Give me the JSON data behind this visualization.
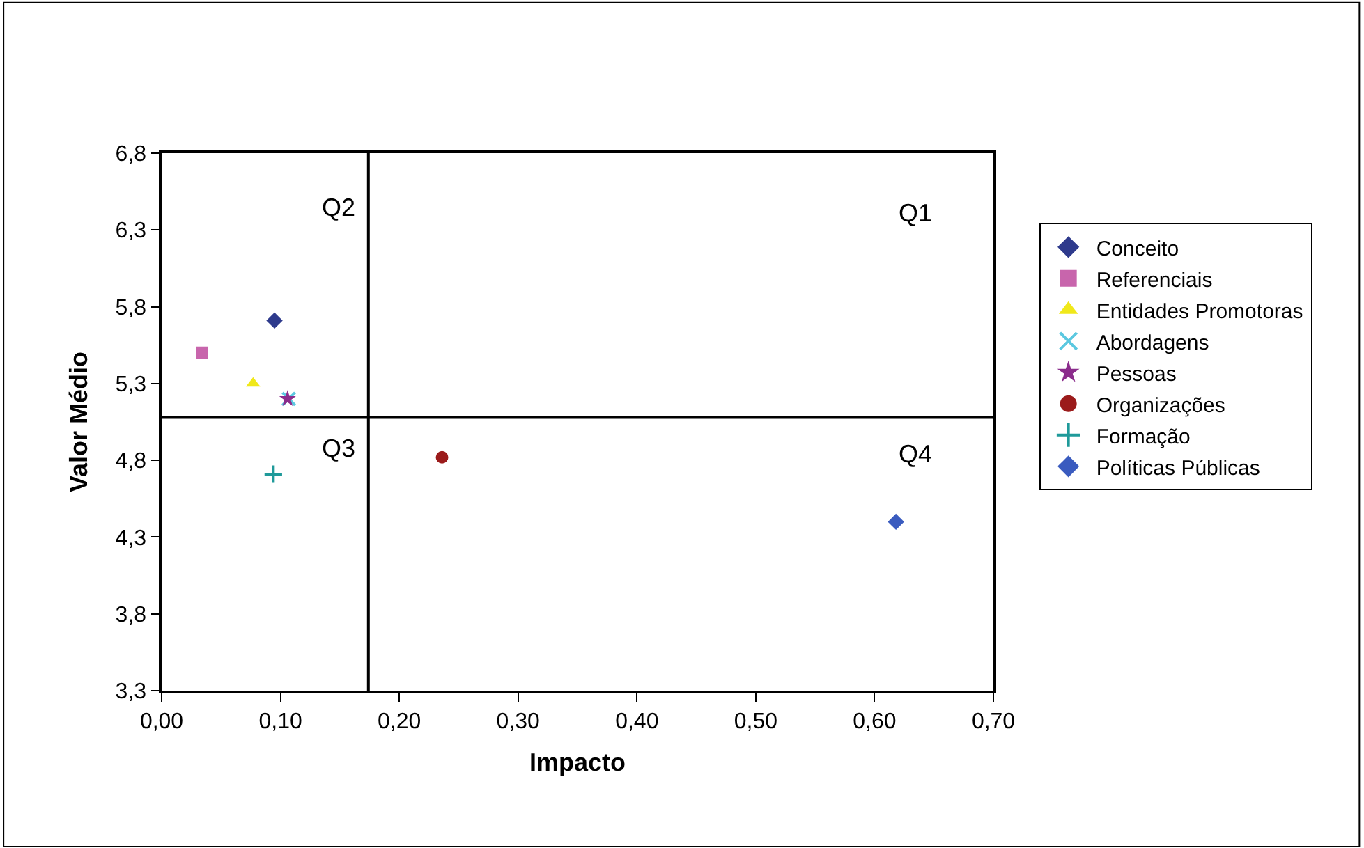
{
  "chart_data": {
    "type": "scatter",
    "xlabel": "Impacto",
    "ylabel": "Valor Médio",
    "xlim": [
      0,
      0.7
    ],
    "ylim": [
      3.3,
      6.8
    ],
    "xticks": [
      {
        "value": 0,
        "label": "0,00"
      },
      {
        "value": 0.1,
        "label": "0,10"
      },
      {
        "value": 0.2,
        "label": "0,20"
      },
      {
        "value": 0.3,
        "label": "0,30"
      },
      {
        "value": 0.4,
        "label": "0,40"
      },
      {
        "value": 0.5,
        "label": "0,50"
      },
      {
        "value": 0.6,
        "label": "0,60"
      },
      {
        "value": 0.7,
        "label": "0,70"
      }
    ],
    "yticks": [
      {
        "value": 3.3,
        "label": "3,3"
      },
      {
        "value": 3.8,
        "label": "3,8"
      },
      {
        "value": 4.3,
        "label": "4,3"
      },
      {
        "value": 4.8,
        "label": "4,8"
      },
      {
        "value": 5.3,
        "label": "5,3"
      },
      {
        "value": 5.8,
        "label": "5,8"
      },
      {
        "value": 6.3,
        "label": "6,3"
      },
      {
        "value": 6.8,
        "label": "6,8"
      }
    ],
    "legend": "right",
    "series": [
      {
        "name": "Conceito",
        "color": "#2e3a8c",
        "marker": "diamond",
        "x": [
          0.095
        ],
        "values": [
          5.71
        ]
      },
      {
        "name": "Referenciais",
        "color": "#c865ac",
        "marker": "square",
        "x": [
          0.034
        ],
        "values": [
          5.5
        ]
      },
      {
        "name": "Entidades Promotoras",
        "color": "#f0e81a",
        "marker": "triangle",
        "x": [
          0.077
        ],
        "values": [
          5.3
        ]
      },
      {
        "name": "Abordagens",
        "color": "#5bc8e0",
        "marker": "x",
        "x": [
          0.107
        ],
        "values": [
          5.2
        ]
      },
      {
        "name": "Pessoas",
        "color": "#8b2c8c",
        "marker": "star",
        "x": [
          0.106
        ],
        "values": [
          5.2
        ]
      },
      {
        "name": "Organizações",
        "color": "#9b1b1b",
        "marker": "circle",
        "x": [
          0.236
        ],
        "values": [
          4.82
        ]
      },
      {
        "name": "Formação",
        "color": "#1f9a9a",
        "marker": "cross",
        "x": [
          0.094
        ],
        "values": [
          4.71
        ]
      },
      {
        "name": "Políticas Públicas",
        "color": "#3a5bbf",
        "marker": "diamond",
        "x": [
          0.618
        ],
        "values": [
          4.4
        ]
      }
    ],
    "ref_lines": [
      {
        "axis": "x",
        "value": 0.174,
        "color": "#000000"
      },
      {
        "axis": "y",
        "value": 5.08,
        "color": "#000000"
      }
    ],
    "annotations": [
      "Q2",
      "Q1",
      "Q3",
      "Q4"
    ]
  }
}
